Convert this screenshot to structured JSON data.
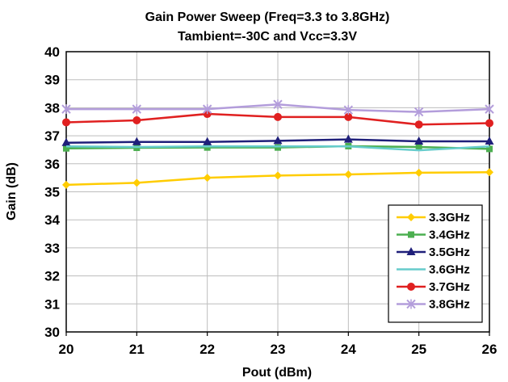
{
  "chart_data": {
    "type": "line",
    "title": "Gain Power Sweep (Freq=3.3 to 3.8GHz)",
    "subtitle": "Tambient=-30C and Vcc=3.3V",
    "xlabel": "Pout (dBm)",
    "ylabel": "Gain (dB)",
    "xlim": [
      20,
      26
    ],
    "ylim": [
      30,
      40
    ],
    "x": [
      20,
      21,
      22,
      23,
      24,
      25,
      26
    ],
    "grid": true,
    "legend_position": "bottom-right",
    "series": [
      {
        "name": "3.3GHz",
        "color": "#FFCC00",
        "marker": "diamond",
        "values": [
          35.25,
          35.32,
          35.5,
          35.58,
          35.62,
          35.68,
          35.7
        ]
      },
      {
        "name": "3.4GHz",
        "color": "#4CAF50",
        "marker": "square",
        "values": [
          36.55,
          36.57,
          36.58,
          36.58,
          36.63,
          36.6,
          36.53
        ]
      },
      {
        "name": "3.5GHz",
        "color": "#1F1F7A",
        "marker": "triangle",
        "values": [
          36.75,
          36.78,
          36.78,
          36.82,
          36.87,
          36.8,
          36.8
        ]
      },
      {
        "name": "3.6GHz",
        "color": "#66CCCC",
        "marker": "none",
        "values": [
          36.62,
          36.6,
          36.62,
          36.62,
          36.62,
          36.48,
          36.62
        ]
      },
      {
        "name": "3.7GHz",
        "color": "#E02020",
        "marker": "circle",
        "values": [
          37.48,
          37.55,
          37.78,
          37.67,
          37.67,
          37.4,
          37.45
        ]
      },
      {
        "name": "3.8GHz",
        "color": "#B39DDB",
        "marker": "x",
        "values": [
          37.95,
          37.95,
          37.95,
          38.12,
          37.92,
          37.85,
          37.95
        ]
      }
    ]
  }
}
